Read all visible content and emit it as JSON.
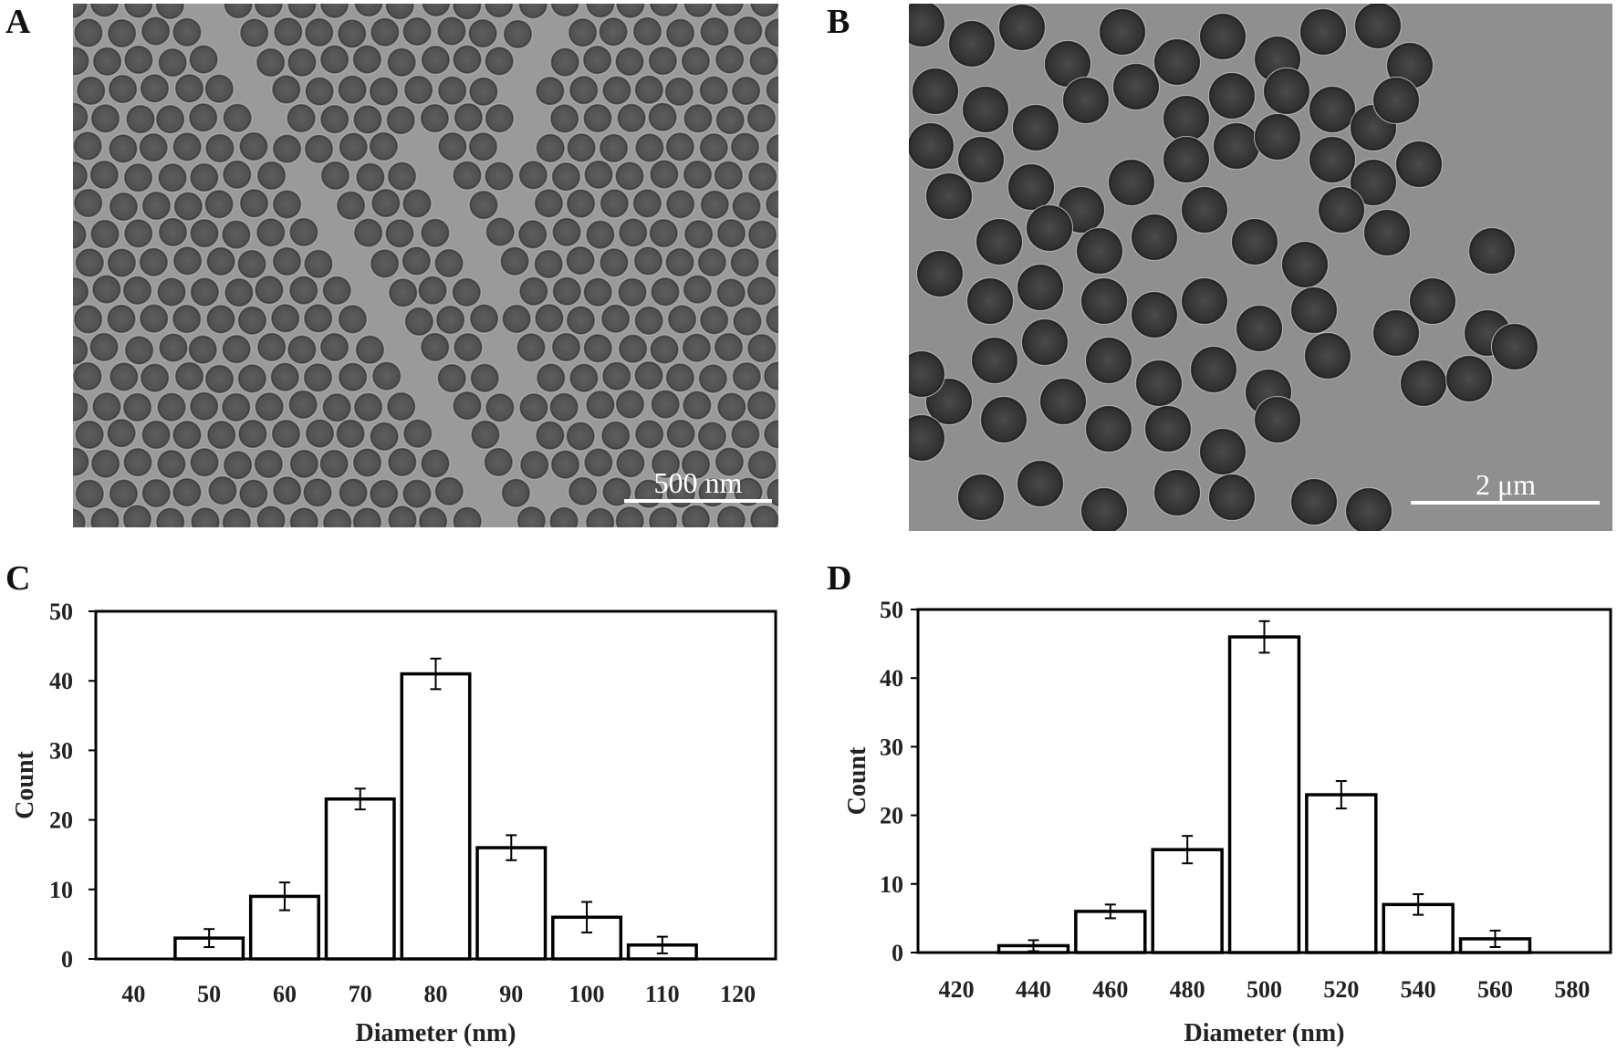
{
  "panels": {
    "a": "A",
    "b": "B",
    "c": "C",
    "d": "D"
  },
  "images": {
    "a": {
      "scale_bar": "500 nm",
      "background": "#9a9a9a",
      "particle": "#555555"
    },
    "b": {
      "scale_bar": "2 μm",
      "background": "#8f8f8f",
      "particle": "#3c3c3c"
    }
  },
  "chart_data": [
    {
      "panel": "C",
      "type": "bar",
      "xlabel": "Diameter (nm)",
      "ylabel": "Count",
      "categories": [
        "40",
        "50",
        "60",
        "70",
        "80",
        "90",
        "100",
        "110",
        "120"
      ],
      "values": [
        0,
        3,
        9,
        23,
        41,
        16,
        6,
        2,
        0
      ],
      "errors": [
        0,
        1.3,
        2,
        1.5,
        2.2,
        1.8,
        2.2,
        1.2,
        0
      ],
      "ylim": [
        0,
        50
      ],
      "yticks": [
        0,
        10,
        20,
        30,
        40,
        50
      ],
      "grid": false,
      "legend": "none"
    },
    {
      "panel": "D",
      "type": "bar",
      "xlabel": "Diameter (nm)",
      "ylabel": "Count",
      "categories": [
        "420",
        "440",
        "460",
        "480",
        "500",
        "520",
        "540",
        "560",
        "580"
      ],
      "values": [
        0,
        1,
        6,
        15,
        46,
        23,
        7,
        2,
        0
      ],
      "errors": [
        0,
        0.8,
        1,
        2,
        2.3,
        2,
        1.5,
        1.2,
        0
      ],
      "ylim": [
        0,
        50
      ],
      "yticks": [
        0,
        10,
        20,
        30,
        40,
        50
      ],
      "grid": false,
      "legend": "none"
    }
  ]
}
